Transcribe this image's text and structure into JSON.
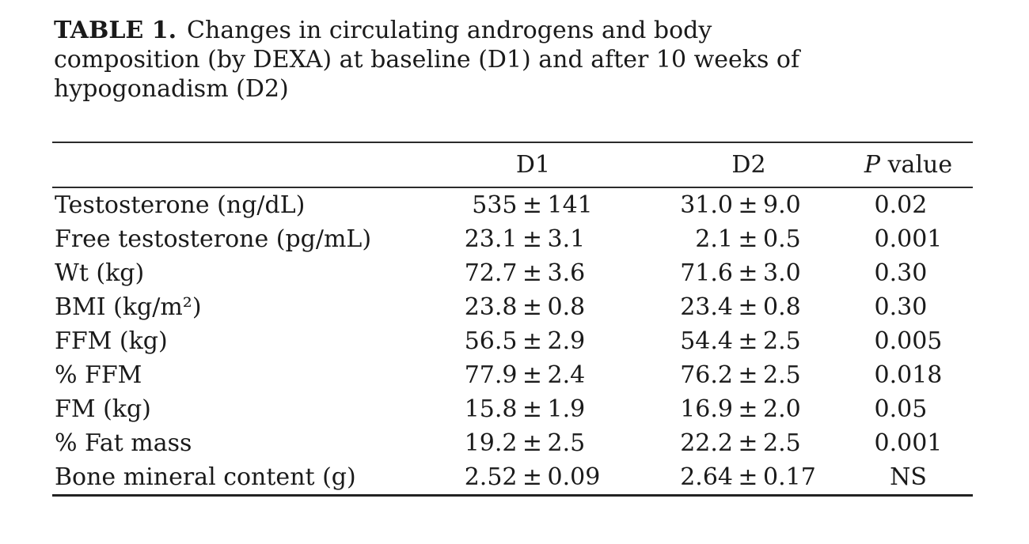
{
  "caption": {
    "label": "TABLE 1.",
    "line1_rest": "Changes in circulating androgens and body",
    "line2": "composition (by DEXA) at baseline (D1) and after 10 weeks of",
    "line3": "hypogonadism (D2)"
  },
  "table": {
    "columns": {
      "label": "",
      "d1": "D1",
      "d2": "D2",
      "p_italic": "P",
      "p_rest": "value"
    },
    "plus_minus": "±",
    "rows": [
      {
        "label": "Testosterone (ng/dL)",
        "d1_mean": "535",
        "d1_err": "141",
        "d2_mean": "31.0",
        "d2_err": "9.0",
        "p": "0.02"
      },
      {
        "label": "Free testosterone (pg/mL)",
        "d1_mean": "23.1",
        "d1_err": "3.1",
        "d2_mean": "2.1",
        "d2_err": "0.5",
        "p": "0.001"
      },
      {
        "label": "Wt (kg)",
        "d1_mean": "72.7",
        "d1_err": "3.6",
        "d2_mean": "71.6",
        "d2_err": "3.0",
        "p": "0.30"
      },
      {
        "label": "BMI (kg/m²)",
        "d1_mean": "23.8",
        "d1_err": "0.8",
        "d2_mean": "23.4",
        "d2_err": "0.8",
        "p": "0.30"
      },
      {
        "label": "FFM (kg)",
        "d1_mean": "56.5",
        "d1_err": "2.9",
        "d2_mean": "54.4",
        "d2_err": "2.5",
        "p": "0.005"
      },
      {
        "label": "% FFM",
        "d1_mean": "77.9",
        "d1_err": "2.4",
        "d2_mean": "76.2",
        "d2_err": "2.5",
        "p": "0.018"
      },
      {
        "label": "FM (kg)",
        "d1_mean": "15.8",
        "d1_err": "1.9",
        "d2_mean": "16.9",
        "d2_err": "2.0",
        "p": "0.05"
      },
      {
        "label": "% Fat mass",
        "d1_mean": "19.2",
        "d1_err": "2.5",
        "d2_mean": "22.2",
        "d2_err": "2.5",
        "p": "0.001"
      },
      {
        "label": "Bone mineral content (g)",
        "d1_mean": "2.52",
        "d1_err": "0.09",
        "d2_mean": "2.64",
        "d2_err": "0.17",
        "p": "NS"
      }
    ]
  }
}
